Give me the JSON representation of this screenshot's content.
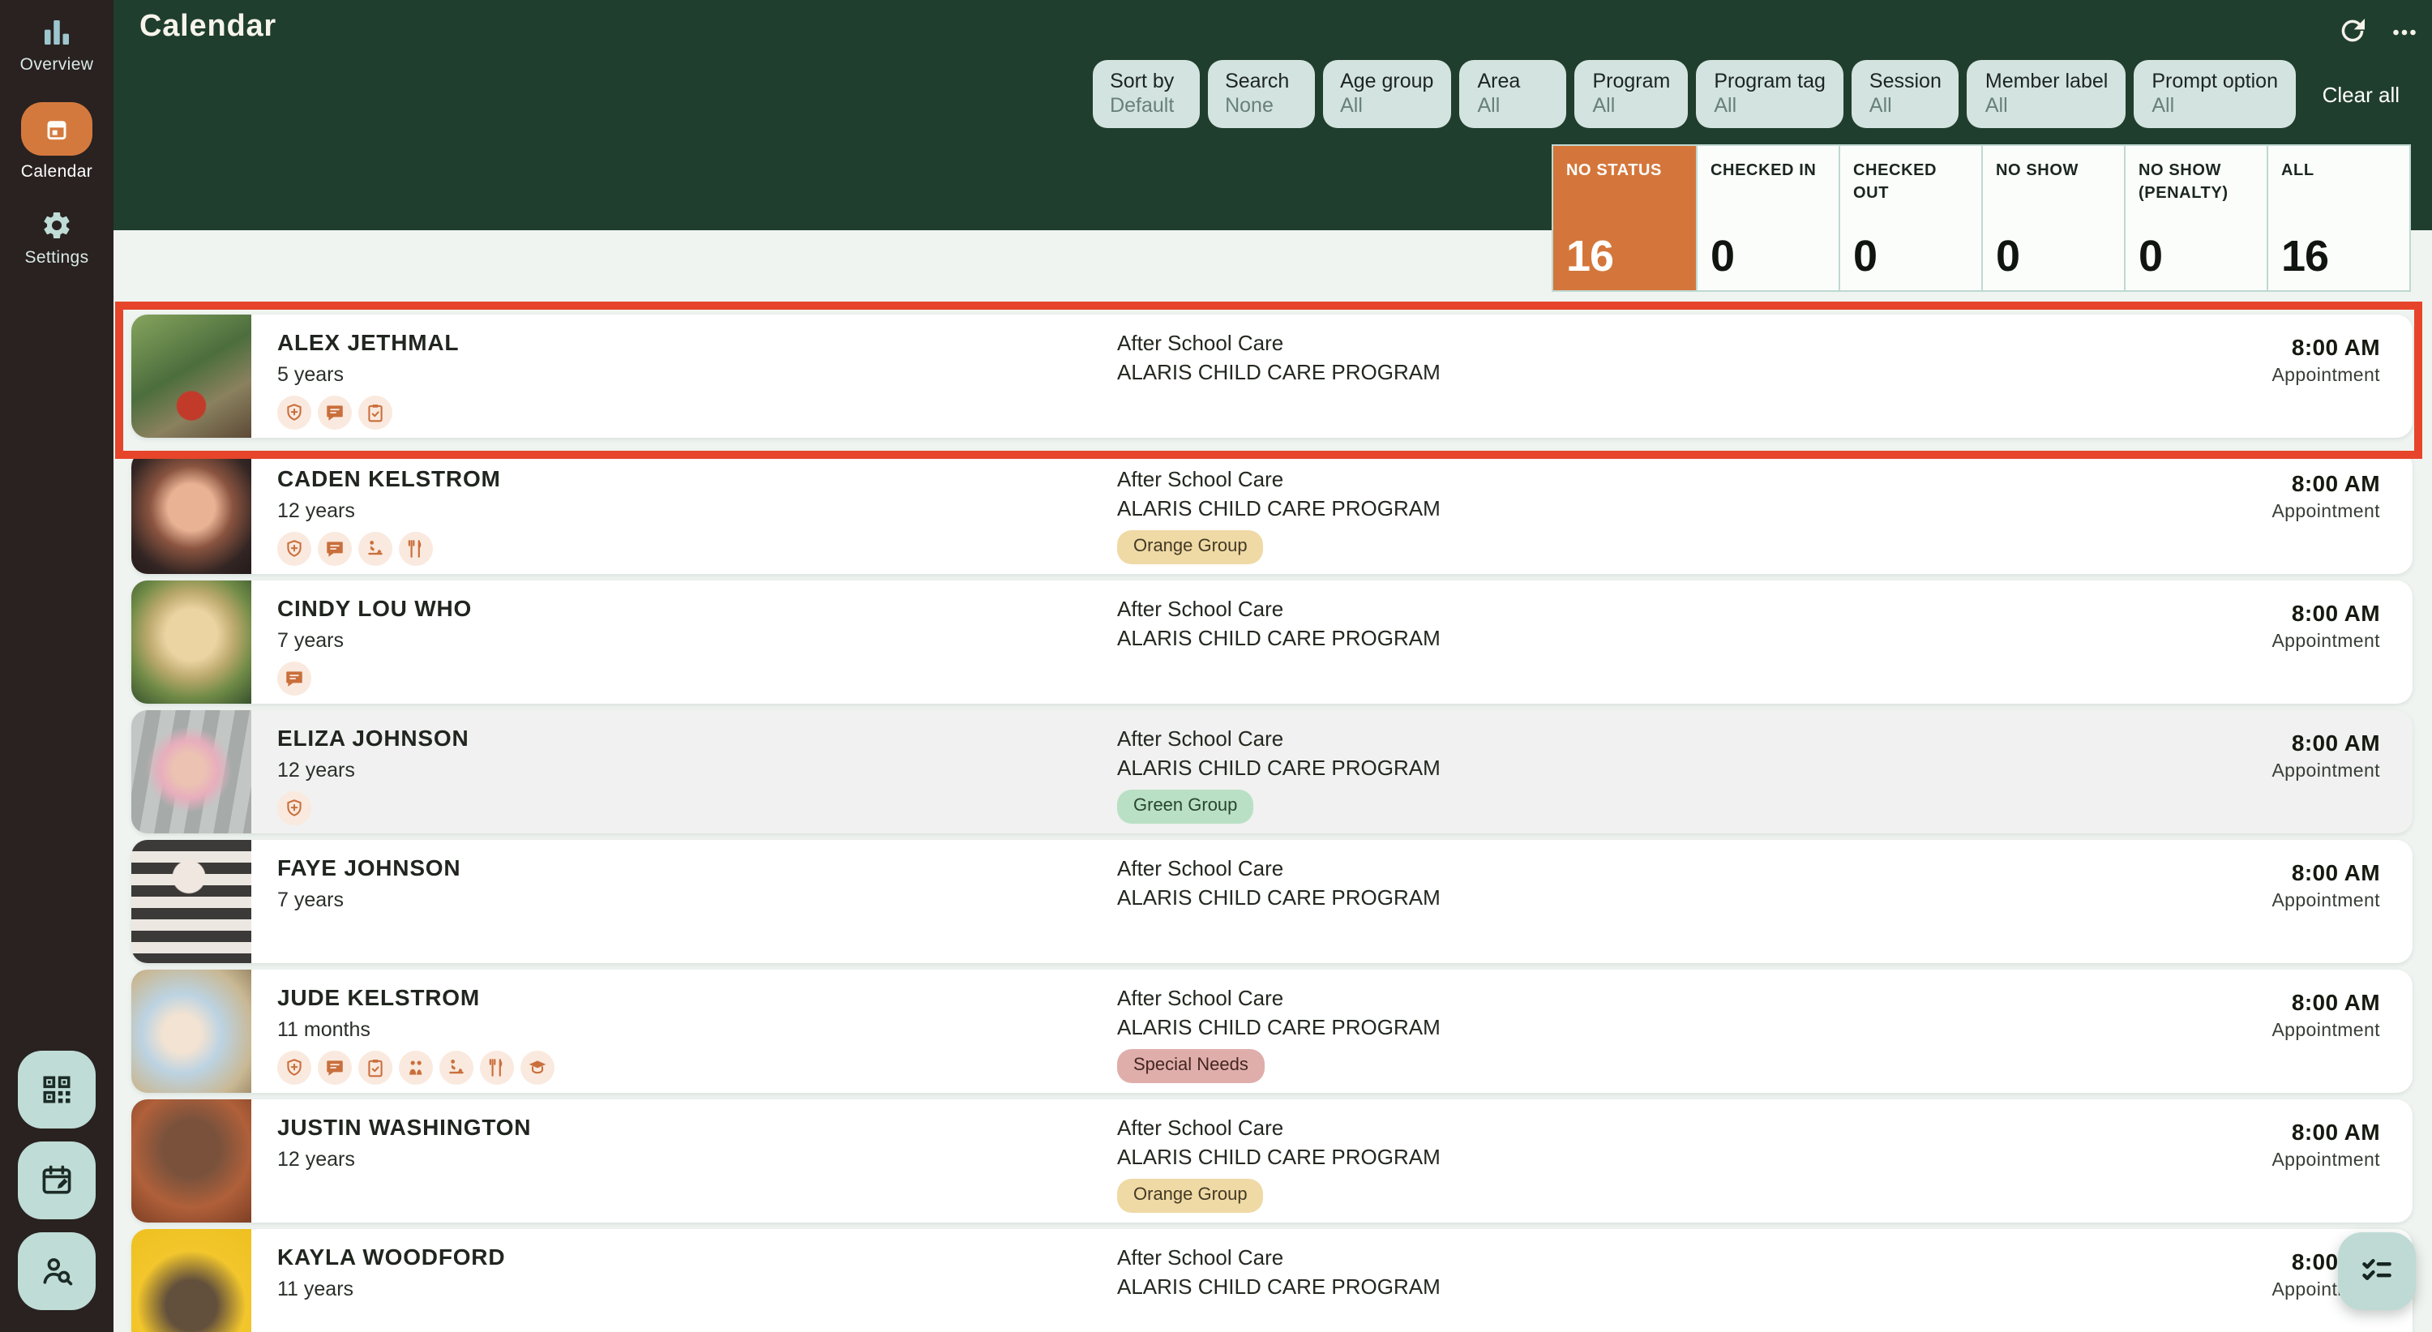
{
  "header": {
    "title": "Calendar",
    "actions": [
      {
        "icon": "refresh"
      },
      {
        "icon": "more"
      }
    ],
    "clear_all_label": "Clear all"
  },
  "sidebar": {
    "items": [
      {
        "label": "Overview",
        "icon": "bar-chart",
        "active": false
      },
      {
        "label": "Calendar",
        "icon": "calendar",
        "active": true
      },
      {
        "label": "Settings",
        "icon": "gear",
        "active": false
      }
    ],
    "quick_actions": [
      {
        "icon": "qr-code"
      },
      {
        "icon": "calendar-edit"
      },
      {
        "icon": "person-search"
      }
    ]
  },
  "filters": [
    {
      "label": "Sort by",
      "value": "Default"
    },
    {
      "label": "Search",
      "value": "None"
    },
    {
      "label": "Age group",
      "value": "All"
    },
    {
      "label": "Area",
      "value": "All"
    },
    {
      "label": "Program",
      "value": "All"
    },
    {
      "label": "Program tag",
      "value": "All"
    },
    {
      "label": "Session",
      "value": "All"
    },
    {
      "label": "Member label",
      "value": "All"
    },
    {
      "label": "Prompt option",
      "value": "All"
    }
  ],
  "status_tabs": [
    {
      "label": "NO STATUS",
      "count": "16",
      "active": true
    },
    {
      "label": "CHECKED IN",
      "count": "0",
      "active": false
    },
    {
      "label": "CHECKED OUT",
      "count": "0",
      "active": false
    },
    {
      "label": "NO SHOW",
      "count": "0",
      "active": false
    },
    {
      "label": "NO SHOW (PENALTY)",
      "count": "0",
      "active": false
    },
    {
      "label": "ALL",
      "count": "16",
      "active": false
    }
  ],
  "appointments": [
    {
      "name": "ALEX JETHMAL",
      "age": "5 years",
      "icons": [
        "shield-plus",
        "chat-lines",
        "clipboard-check"
      ],
      "session": "After School Care",
      "program": "ALARIS CHILD CARE PROGRAM",
      "tag": null,
      "time": "8:00 AM",
      "time_type": "Appointment",
      "photo": "alex",
      "highlighted": true
    },
    {
      "name": "CADEN KELSTROM",
      "age": "12 years",
      "icons": [
        "shield-plus",
        "chat-lines",
        "changing-table",
        "utensils"
      ],
      "session": "After School Care",
      "program": "ALARIS CHILD CARE PROGRAM",
      "tag": {
        "label": "Orange Group",
        "bg": "#EFD9A5",
        "fg": "#433A25"
      },
      "time": "8:00 AM",
      "time_type": "Appointment",
      "photo": "caden"
    },
    {
      "name": "CINDY LOU WHO",
      "age": "7 years",
      "icons": [
        "chat-lines"
      ],
      "session": "After School Care",
      "program": "ALARIS CHILD CARE PROGRAM",
      "tag": null,
      "time": "8:00 AM",
      "time_type": "Appointment",
      "photo": "cindy"
    },
    {
      "name": "ELIZA JOHNSON",
      "age": "12 years",
      "icons": [
        "shield-plus"
      ],
      "session": "After School Care",
      "program": "ALARIS CHILD CARE PROGRAM",
      "tag": {
        "label": "Green Group",
        "bg": "#B9E0C4",
        "fg": "#29452F"
      },
      "time": "8:00 AM",
      "time_type": "Appointment",
      "photo": "eliza",
      "muted": true
    },
    {
      "name": "FAYE JOHNSON",
      "age": "7 years",
      "icons": [],
      "session": "After School Care",
      "program": "ALARIS CHILD CARE PROGRAM",
      "tag": null,
      "time": "8:00 AM",
      "time_type": "Appointment",
      "photo": "faye"
    },
    {
      "name": "JUDE KELSTROM",
      "age": "11 months",
      "icons": [
        "shield-plus",
        "chat-lines",
        "clipboard-check",
        "people",
        "changing-table",
        "utensils",
        "education"
      ],
      "session": "After School Care",
      "program": "ALARIS CHILD CARE PROGRAM",
      "tag": {
        "label": "Special Needs",
        "bg": "#DFAEAB",
        "fg": "#44261F"
      },
      "time": "8:00 AM",
      "time_type": "Appointment",
      "photo": "jude"
    },
    {
      "name": "JUSTIN WASHINGTON",
      "age": "12 years",
      "icons": [],
      "session": "After School Care",
      "program": "ALARIS CHILD CARE PROGRAM",
      "tag": {
        "label": "Orange Group",
        "bg": "#EFD9A5",
        "fg": "#433A25"
      },
      "time": "8:00 AM",
      "time_type": "Appointment",
      "photo": "justin"
    },
    {
      "name": "KAYLA WOODFORD",
      "age": "11 years",
      "icons": [],
      "session": "After School Care",
      "program": "ALARIS CHILD CARE PROGRAM",
      "tag": null,
      "time": "8:00 AM",
      "time_type": "Appointment",
      "photo": "kayla"
    }
  ],
  "fab": {
    "icon": "checklist"
  },
  "highlight": {
    "target_row": "ALEX JETHMAL",
    "color": "#E6452B"
  },
  "colors": {
    "header_bg": "#203E2D",
    "sidebar_bg": "#292220",
    "accent_orange": "#D4793E",
    "active_tab_orange": "#D4763B",
    "filter_chip_bg": "#D3E3DF",
    "quick_action_bg": "#BFDCD6",
    "flag_icon_orange": "#C96F3C",
    "flag_chip_bg": "#FAE9DE",
    "page_bg": "#EFF4F1",
    "highlight_red": "#E6452B"
  }
}
